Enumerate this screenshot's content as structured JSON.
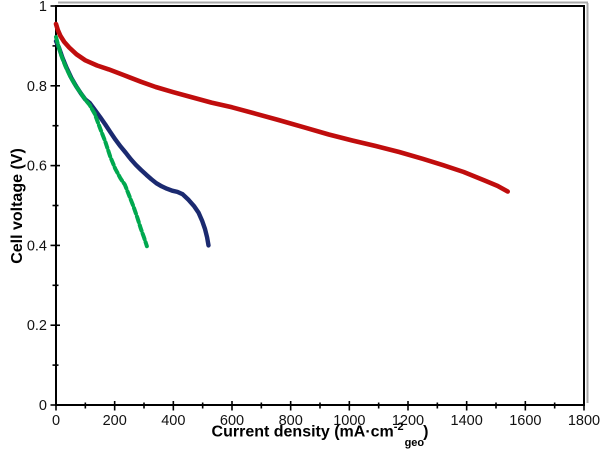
{
  "chart_data": {
    "type": "line",
    "title": "",
    "xlabel": {
      "prefix": "Current density (mA·cm",
      "superscript": "-2",
      "subscript": "geo",
      "suffix": ")"
    },
    "ylabel": "Cell voltage (V)",
    "xlim": [
      0,
      1800
    ],
    "ylim": [
      0,
      1
    ],
    "grid": false,
    "legend": false,
    "axis_color": "#000000",
    "shadow_color": "#a8a8a8",
    "xticks": [
      {
        "v": 0,
        "label": "0"
      },
      {
        "v": 100,
        "label": ""
      },
      {
        "v": 200,
        "label": "200"
      },
      {
        "v": 300,
        "label": ""
      },
      {
        "v": 400,
        "label": "400"
      },
      {
        "v": 500,
        "label": ""
      },
      {
        "v": 600,
        "label": "600"
      },
      {
        "v": 700,
        "label": ""
      },
      {
        "v": 800,
        "label": "800"
      },
      {
        "v": 900,
        "label": ""
      },
      {
        "v": 1000,
        "label": "1000"
      },
      {
        "v": 1100,
        "label": ""
      },
      {
        "v": 1200,
        "label": "1200"
      },
      {
        "v": 1300,
        "label": ""
      },
      {
        "v": 1400,
        "label": "1400"
      },
      {
        "v": 1500,
        "label": ""
      },
      {
        "v": 1600,
        "label": "1600"
      },
      {
        "v": 1700,
        "label": ""
      },
      {
        "v": 1800,
        "label": "1800"
      }
    ],
    "yticks": [
      {
        "v": 0,
        "label": "0"
      },
      {
        "v": 0.1,
        "label": ""
      },
      {
        "v": 0.2,
        "label": "0.2"
      },
      {
        "v": 0.3,
        "label": ""
      },
      {
        "v": 0.4,
        "label": "0.4"
      },
      {
        "v": 0.5,
        "label": ""
      },
      {
        "v": 0.6,
        "label": "0.6"
      },
      {
        "v": 0.7,
        "label": ""
      },
      {
        "v": 0.8,
        "label": "0.8"
      },
      {
        "v": 0.9,
        "label": ""
      },
      {
        "v": 1,
        "label": "1"
      }
    ],
    "series": [
      {
        "name": "navy-curve",
        "color": "#1b2a70",
        "width": 4.4,
        "dash": "",
        "points": [
          [
            0,
            0.912
          ],
          [
            10,
            0.896
          ],
          [
            22,
            0.87
          ],
          [
            36,
            0.845
          ],
          [
            52,
            0.82
          ],
          [
            68,
            0.8
          ],
          [
            85,
            0.781
          ],
          [
            100,
            0.766
          ],
          [
            115,
            0.757
          ],
          [
            132,
            0.74
          ],
          [
            150,
            0.722
          ],
          [
            168,
            0.703
          ],
          [
            185,
            0.684
          ],
          [
            203,
            0.665
          ],
          [
            220,
            0.648
          ],
          [
            238,
            0.632
          ],
          [
            255,
            0.616
          ],
          [
            272,
            0.602
          ],
          [
            290,
            0.589
          ],
          [
            308,
            0.577
          ],
          [
            325,
            0.566
          ],
          [
            342,
            0.556
          ],
          [
            360,
            0.548
          ],
          [
            378,
            0.542
          ],
          [
            396,
            0.537
          ],
          [
            414,
            0.534
          ],
          [
            432,
            0.528
          ],
          [
            452,
            0.514
          ],
          [
            470,
            0.499
          ],
          [
            486,
            0.482
          ],
          [
            498,
            0.462
          ],
          [
            508,
            0.441
          ],
          [
            515,
            0.42
          ],
          [
            520,
            0.4
          ]
        ]
      },
      {
        "name": "green-curve",
        "color": "#00a84f",
        "width": 4.0,
        "dash": "6 3",
        "points": [
          [
            0,
            0.922
          ],
          [
            8,
            0.901
          ],
          [
            18,
            0.876
          ],
          [
            32,
            0.849
          ],
          [
            48,
            0.824
          ],
          [
            65,
            0.802
          ],
          [
            82,
            0.784
          ],
          [
            100,
            0.765
          ],
          [
            115,
            0.752
          ],
          [
            132,
            0.73
          ],
          [
            150,
            0.694
          ],
          [
            168,
            0.66
          ],
          [
            185,
            0.622
          ],
          [
            202,
            0.592
          ],
          [
            220,
            0.568
          ],
          [
            235,
            0.552
          ],
          [
            250,
            0.524
          ],
          [
            264,
            0.498
          ],
          [
            277,
            0.47
          ],
          [
            289,
            0.442
          ],
          [
            300,
            0.42
          ],
          [
            310,
            0.398
          ]
        ]
      },
      {
        "name": "red-curve",
        "color": "#c00d0d",
        "width": 4.6,
        "dash": "",
        "points": [
          [
            0,
            0.955
          ],
          [
            6,
            0.94
          ],
          [
            15,
            0.925
          ],
          [
            28,
            0.91
          ],
          [
            45,
            0.896
          ],
          [
            70,
            0.879
          ],
          [
            100,
            0.864
          ],
          [
            140,
            0.851
          ],
          [
            180,
            0.841
          ],
          [
            230,
            0.827
          ],
          [
            290,
            0.81
          ],
          [
            340,
            0.797
          ],
          [
            400,
            0.784
          ],
          [
            460,
            0.772
          ],
          [
            530,
            0.758
          ],
          [
            600,
            0.746
          ],
          [
            680,
            0.73
          ],
          [
            760,
            0.714
          ],
          [
            850,
            0.695
          ],
          [
            930,
            0.678
          ],
          [
            1010,
            0.663
          ],
          [
            1090,
            0.649
          ],
          [
            1170,
            0.634
          ],
          [
            1250,
            0.617
          ],
          [
            1320,
            0.601
          ],
          [
            1390,
            0.584
          ],
          [
            1460,
            0.563
          ],
          [
            1505,
            0.549
          ],
          [
            1540,
            0.535
          ]
        ]
      }
    ]
  }
}
